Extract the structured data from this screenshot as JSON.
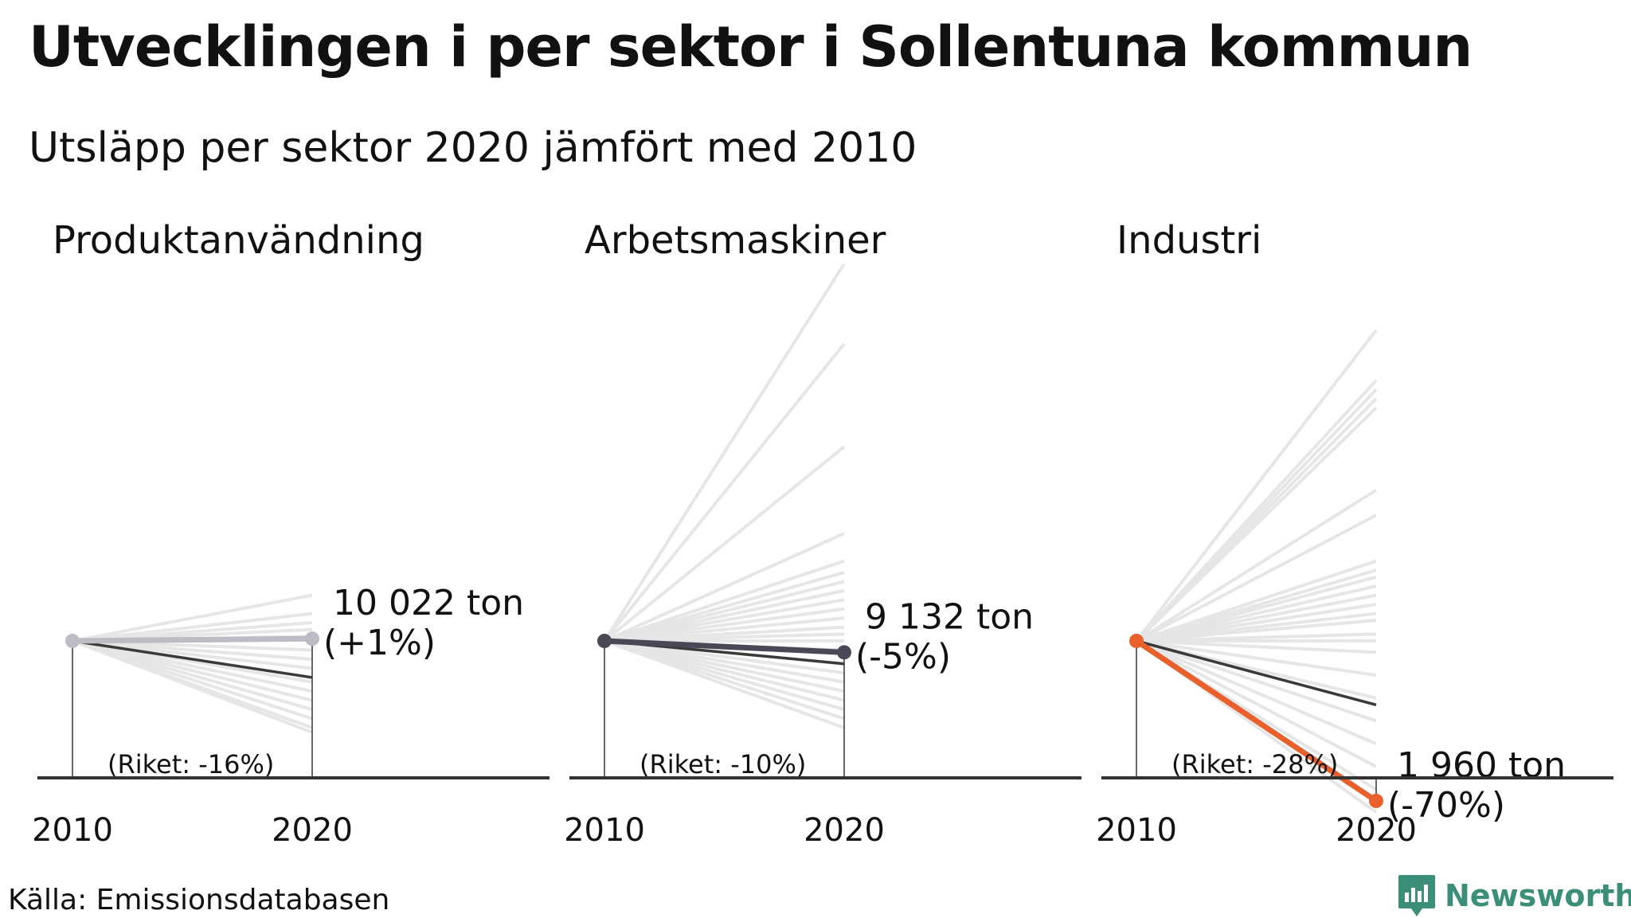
{
  "title": "Utvecklingen i per sektor i Sollentuna kommun",
  "subtitle": "Utsläpp per sektor 2020 jämfört med 2010",
  "source": "Källa: Emissionsdatabasen",
  "brand": {
    "name": "Newsworthy",
    "icon": "newsworthy-logo-icon",
    "color": "#3b8f78"
  },
  "colors": {
    "background_lines": "#e6e6e6",
    "national": "#3a3a3a",
    "panel1": "#bdbbc6",
    "panel2": "#4a4857",
    "panel3": "#e8602c",
    "axis": "#333333"
  },
  "chart_data": [
    {
      "type": "line",
      "title": "Produktanvändning",
      "x": [
        2010,
        2020
      ],
      "municipality_change_pct": 1,
      "value_label": "10 022 ton",
      "change_label": "(+1%)",
      "national_change_pct": -16,
      "national_label": "(Riket: -16%)",
      "comparison_changes_pct": [
        20,
        12,
        8,
        5,
        2,
        -4,
        -8,
        -12,
        -18,
        -22,
        -26,
        -30,
        -34,
        -38,
        -40
      ]
    },
    {
      "type": "line",
      "title": "Arbetsmaskiner",
      "x": [
        2010,
        2020
      ],
      "municipality_change_pct": -5,
      "value_label": "9 132 ton",
      "change_label": "(-5%)",
      "national_change_pct": -10,
      "national_label": "(Riket: -10%)",
      "comparison_changes_pct": [
        165,
        130,
        85,
        47,
        35,
        30,
        26,
        22,
        18,
        14,
        10,
        6,
        3,
        0,
        -4,
        -10,
        -14,
        -18,
        -22,
        -26,
        -30,
        -34,
        -38
      ]
    },
    {
      "type": "line",
      "title": "Industri",
      "x": [
        2010,
        2020
      ],
      "municipality_change_pct": -70,
      "value_label": "1 960 ton",
      "change_label": "(-70%)",
      "national_change_pct": -28,
      "national_label": "(Riket: -28%)",
      "comparison_changes_pct": [
        136,
        114,
        110,
        106,
        102,
        66,
        55,
        35,
        31,
        28,
        24,
        20,
        16,
        12,
        9,
        3,
        0,
        -5,
        -15,
        -25,
        -35,
        -45,
        -55,
        -65,
        -75
      ]
    }
  ]
}
